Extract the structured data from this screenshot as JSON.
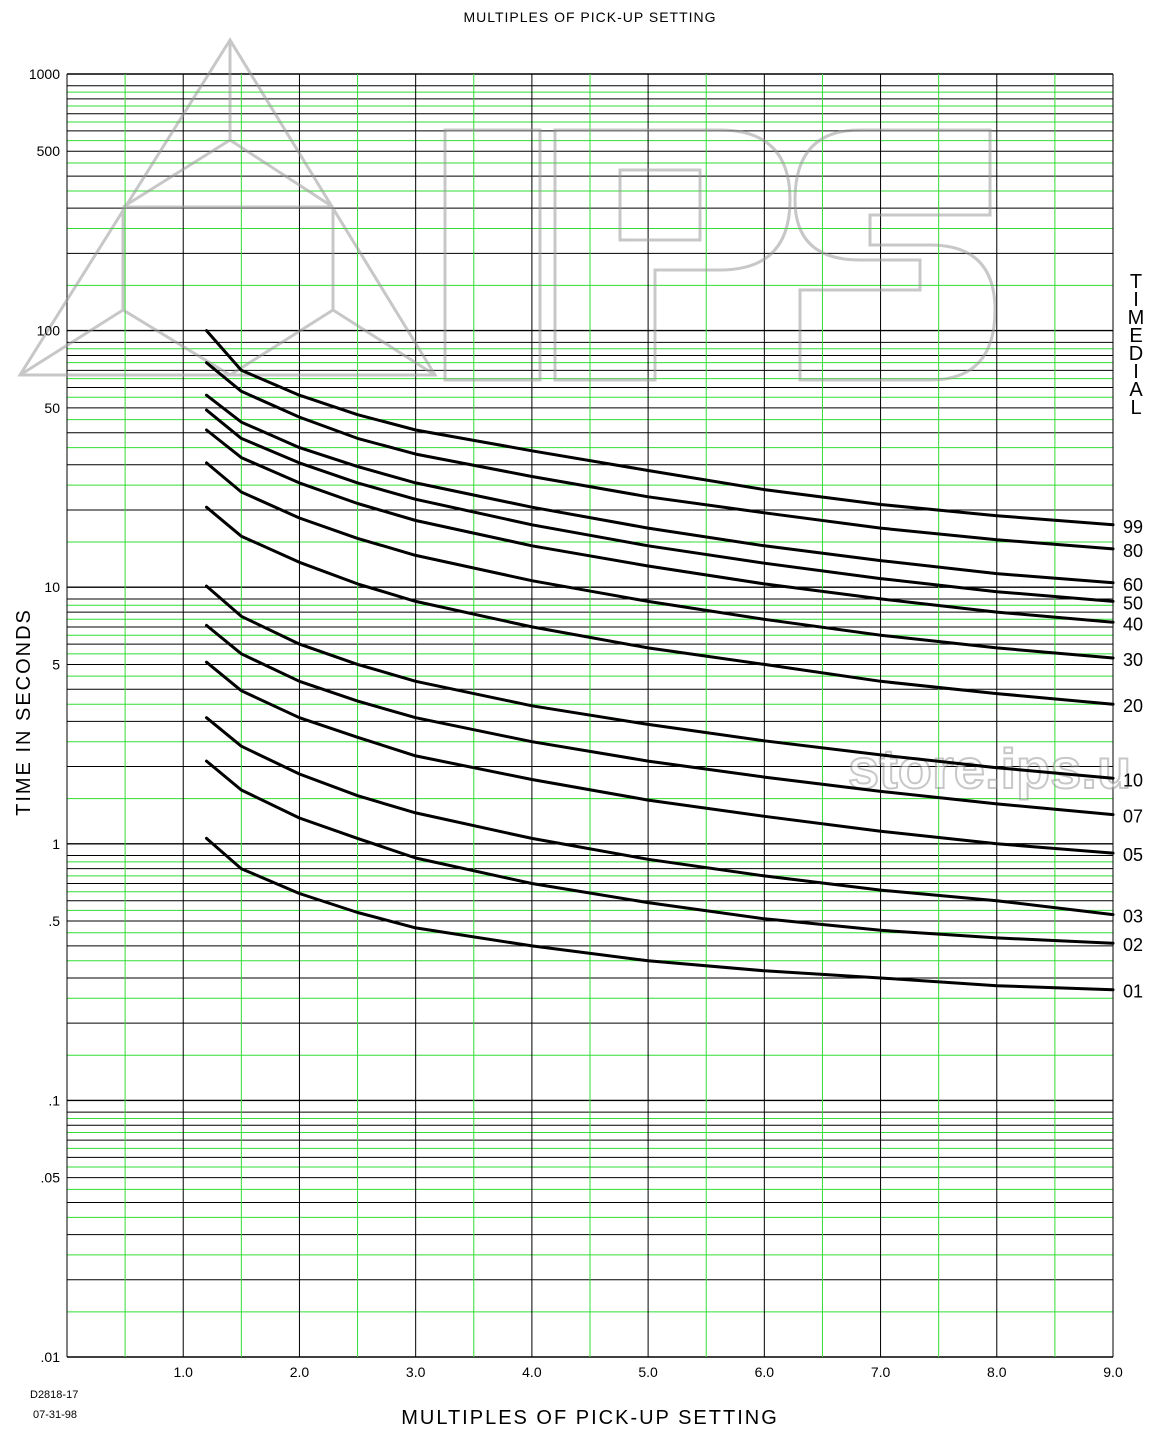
{
  "chart_data": {
    "type": "line",
    "top_title": "MULTIPLES OF PICK-UP SETTING",
    "xlabel": "MULTIPLES OF PICK-UP SETTING",
    "ylabel": "TIME IN SECONDS",
    "side_label": "TIMEDIAL",
    "yscale": "log",
    "xlim": [
      0,
      9.0
    ],
    "ylim": [
      0.01,
      1000
    ],
    "grid": true,
    "x_ticks": [
      {
        "v": 1,
        "label": "1.0"
      },
      {
        "v": 2,
        "label": "2.0"
      },
      {
        "v": 3,
        "label": "3.0"
      },
      {
        "v": 4,
        "label": "4.0"
      },
      {
        "v": 5,
        "label": "5.0"
      },
      {
        "v": 6,
        "label": "6.0"
      },
      {
        "v": 7,
        "label": "7.0"
      },
      {
        "v": 8,
        "label": "8.0"
      },
      {
        "v": 9,
        "label": "9.0"
      }
    ],
    "y_ticks": [
      {
        "v": 1000,
        "label": "1000"
      },
      {
        "v": 500,
        "label": "500"
      },
      {
        "v": 100,
        "label": "100"
      },
      {
        "v": 50,
        "label": "50"
      },
      {
        "v": 10,
        "label": "10"
      },
      {
        "v": 5,
        "label": "5"
      },
      {
        "v": 1,
        "label": "1"
      },
      {
        "v": 0.5,
        "label": ".5"
      },
      {
        "v": 0.1,
        "label": ".1"
      },
      {
        "v": 0.05,
        "label": ".05"
      },
      {
        "v": 0.01,
        "label": ".01"
      }
    ],
    "x": [
      1.2,
      1.5,
      2.0,
      2.5,
      3.0,
      4.0,
      5.0,
      6.0,
      7.0,
      8.0,
      9.0
    ],
    "series": [
      {
        "name": "99",
        "values": [
          100,
          70,
          56,
          47,
          41,
          34,
          28.5,
          24,
          21,
          19,
          17.5
        ]
      },
      {
        "name": "80",
        "values": [
          75,
          58,
          46,
          38,
          33,
          27,
          22.5,
          19.5,
          17,
          15.3,
          14.1
        ]
      },
      {
        "name": "60",
        "values": [
          56,
          44,
          35,
          29.5,
          25.5,
          20.5,
          17,
          14.5,
          12.7,
          11.3,
          10.4
        ]
      },
      {
        "name": "50",
        "values": [
          49,
          38,
          30.5,
          25.5,
          22,
          17.5,
          14.5,
          12.4,
          10.8,
          9.6,
          8.8
        ]
      },
      {
        "name": "40",
        "values": [
          41,
          32,
          25.5,
          21.2,
          18.2,
          14.5,
          12.1,
          10.3,
          9.0,
          8.0,
          7.3
        ]
      },
      {
        "name": "30",
        "values": [
          30.5,
          23.5,
          18.6,
          15.5,
          13.3,
          10.6,
          8.8,
          7.5,
          6.5,
          5.8,
          5.3
        ]
      },
      {
        "name": "20",
        "values": [
          20.5,
          15.8,
          12.5,
          10.3,
          8.8,
          7.0,
          5.8,
          5.0,
          4.3,
          3.85,
          3.5
        ]
      },
      {
        "name": "10",
        "values": [
          10.1,
          7.7,
          6.0,
          5.0,
          4.3,
          3.45,
          2.92,
          2.52,
          2.22,
          1.98,
          1.8
        ]
      },
      {
        "name": "07",
        "values": [
          7.1,
          5.5,
          4.3,
          3.6,
          3.1,
          2.5,
          2.1,
          1.82,
          1.6,
          1.43,
          1.3
        ]
      },
      {
        "name": "05",
        "values": [
          5.1,
          3.95,
          3.1,
          2.6,
          2.2,
          1.78,
          1.48,
          1.28,
          1.12,
          1.0,
          0.92
        ]
      },
      {
        "name": "03",
        "values": [
          3.1,
          2.4,
          1.87,
          1.54,
          1.32,
          1.05,
          0.87,
          0.75,
          0.66,
          0.6,
          0.53
        ]
      },
      {
        "name": "02",
        "values": [
          2.1,
          1.62,
          1.26,
          1.05,
          0.88,
          0.7,
          0.59,
          0.51,
          0.46,
          0.43,
          0.41
        ]
      },
      {
        "name": "01",
        "values": [
          1.05,
          0.8,
          0.64,
          0.54,
          0.47,
          0.4,
          0.35,
          0.32,
          0.3,
          0.28,
          0.27
        ]
      }
    ],
    "doc_code": "D2818-17",
    "doc_date": "07-31-98"
  },
  "watermark": {
    "logo_text": "IPS",
    "store_text": "store.ips.u",
    "color": "#9a9a9a"
  },
  "colors": {
    "grid_major": "#000000",
    "grid_minor": "#33dd33",
    "curve": "#000000"
  }
}
